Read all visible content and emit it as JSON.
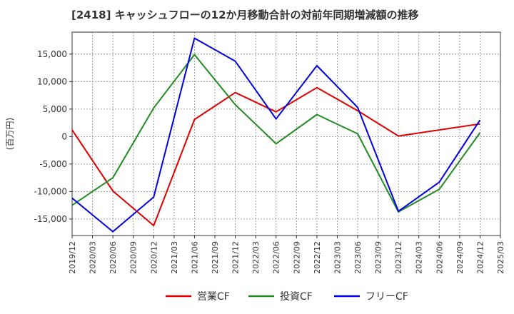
{
  "chart_data": {
    "type": "line",
    "title": "[2418]  キャッシュフローの12か月移動合計の対前年同期増減額の推移",
    "ylabel": "(百万円)",
    "xlabel": "",
    "ylim": [
      -18000,
      19000
    ],
    "yticks": [
      15000,
      10000,
      5000,
      0,
      -5000,
      -10000,
      -15000
    ],
    "ytick_labels": [
      "15,000",
      "10,000",
      "5,000",
      "0",
      "-5,000",
      "-10,000",
      "-15,000"
    ],
    "categories": [
      "2019/12",
      "2020/03",
      "2020/06",
      "2020/09",
      "2020/12",
      "2021/03",
      "2021/06",
      "2021/09",
      "2021/12",
      "2022/03",
      "2022/06",
      "2022/09",
      "2022/12",
      "2023/03",
      "2023/06",
      "2023/09",
      "2023/12",
      "2024/03",
      "2024/06",
      "2024/09",
      "2024/12",
      "2025/03"
    ],
    "series": [
      {
        "name": "営業CF",
        "color": "#e00000",
        "points": [
          [
            "2019/12",
            1200
          ],
          [
            "2020/06",
            -9900
          ],
          [
            "2020/12",
            -16200
          ],
          [
            "2021/06",
            3100
          ],
          [
            "2021/12",
            8000
          ],
          [
            "2022/06",
            4500
          ],
          [
            "2022/12",
            8900
          ],
          [
            "2023/06",
            4700
          ],
          [
            "2023/12",
            100
          ],
          [
            "2024/12",
            2300
          ]
        ]
      },
      {
        "name": "投資CF",
        "color": "#228b22",
        "points": [
          [
            "2019/12",
            -12500
          ],
          [
            "2020/06",
            -7500
          ],
          [
            "2020/12",
            5200
          ],
          [
            "2021/06",
            14900
          ],
          [
            "2021/12",
            5800
          ],
          [
            "2022/06",
            -1300
          ],
          [
            "2022/12",
            4000
          ],
          [
            "2023/06",
            500
          ],
          [
            "2023/12",
            -13700
          ],
          [
            "2024/06",
            -9600
          ],
          [
            "2024/12",
            700
          ]
        ]
      },
      {
        "name": "フリーCF",
        "color": "#0000e0",
        "points": [
          [
            "2019/12",
            -11200
          ],
          [
            "2020/06",
            -17300
          ],
          [
            "2020/12",
            -11000
          ],
          [
            "2021/06",
            17900
          ],
          [
            "2021/12",
            13700
          ],
          [
            "2022/06",
            3200
          ],
          [
            "2022/12",
            12900
          ],
          [
            "2023/06",
            5300
          ],
          [
            "2023/12",
            -13600
          ],
          [
            "2024/06",
            -8300
          ],
          [
            "2024/12",
            3000
          ]
        ]
      }
    ],
    "legend_position": "bottom",
    "grid": true
  }
}
